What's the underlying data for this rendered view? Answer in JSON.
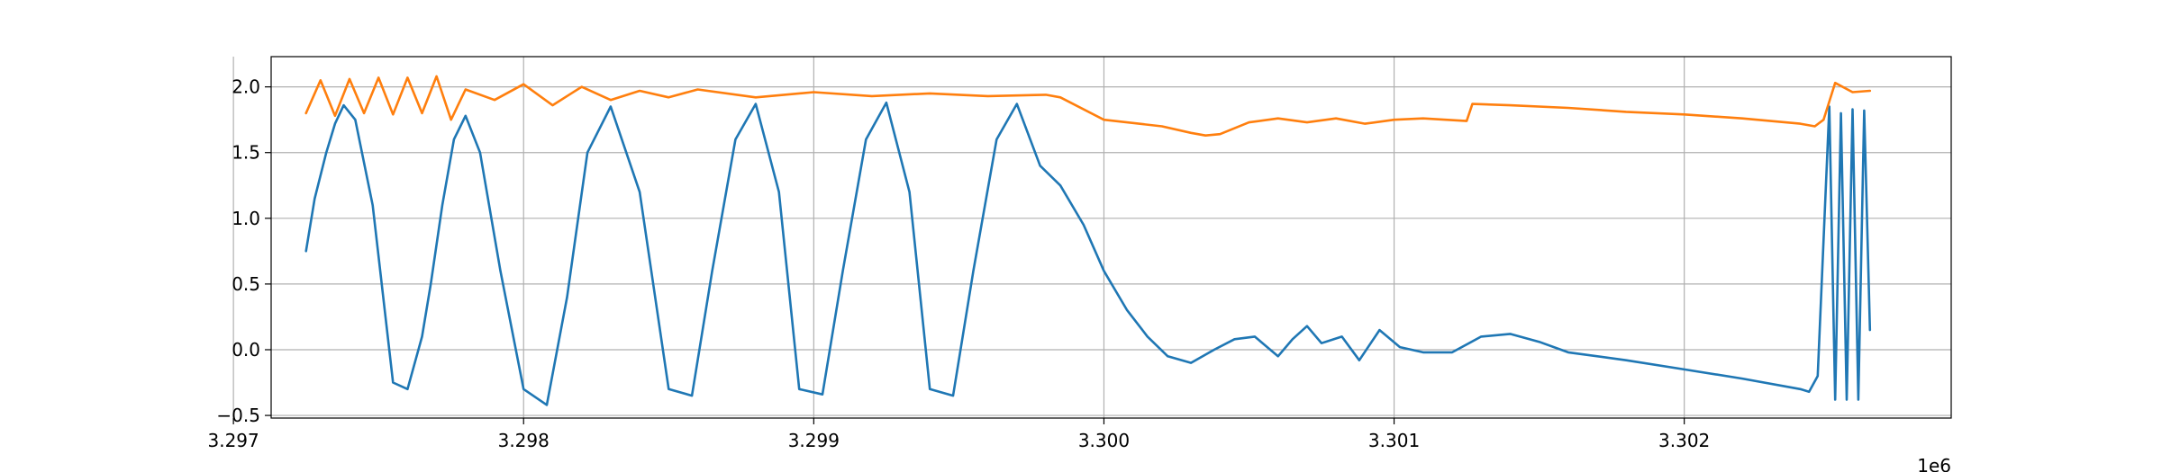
{
  "chart_data": {
    "type": "line",
    "title": "",
    "xlabel": "",
    "ylabel": "",
    "x_offset_label": "1e6",
    "x_scale": 1000000,
    "xlim": [
      3.29713,
      3.30292
    ],
    "ylim": [
      -0.52,
      2.23
    ],
    "grid": true,
    "x_ticks": [
      3.297,
      3.298,
      3.299,
      3.3,
      3.301,
      3.302
    ],
    "x_tick_labels": [
      "3.297",
      "3.298",
      "3.299",
      "3.300",
      "3.301",
      "3.302"
    ],
    "y_ticks": [
      -0.5,
      0.0,
      0.5,
      1.0,
      1.5,
      2.0
    ],
    "y_tick_labels": [
      "−0.5",
      "0.0",
      "0.5",
      "1.0",
      "1.5",
      "2.0"
    ],
    "series": [
      {
        "color": "#1f77b4",
        "x": [
          3.29725,
          3.29728,
          3.29732,
          3.29735,
          3.29738,
          3.29742,
          3.29748,
          3.29755,
          3.2976,
          3.29765,
          3.29768,
          3.29772,
          3.29776,
          3.2978,
          3.29785,
          3.29792,
          3.298,
          3.29808,
          3.29815,
          3.29822,
          3.2983,
          3.2984,
          3.2985,
          3.29858,
          3.29865,
          3.29873,
          3.2988,
          3.29888,
          3.29895,
          3.29903,
          3.2991,
          3.29918,
          3.29925,
          3.29933,
          3.2994,
          3.29948,
          3.29955,
          3.29963,
          3.2997,
          3.29978,
          3.29985,
          3.29993,
          3.3,
          3.30008,
          3.30015,
          3.30022,
          3.3003,
          3.30038,
          3.30045,
          3.30052,
          3.3006,
          3.30065,
          3.3007,
          3.30075,
          3.30082,
          3.30088,
          3.30095,
          3.30102,
          3.3011,
          3.3012,
          3.3013,
          3.3014,
          3.3015,
          3.3016,
          3.3018,
          3.302,
          3.3022,
          3.3024,
          3.30243,
          3.30246,
          3.3025,
          3.30252,
          3.30254,
          3.30256,
          3.30258,
          3.3026,
          3.30262,
          3.30264
        ],
        "y": [
          0.75,
          1.15,
          1.5,
          1.72,
          1.86,
          1.75,
          1.1,
          -0.25,
          -0.3,
          0.1,
          0.5,
          1.1,
          1.6,
          1.78,
          1.5,
          0.6,
          -0.3,
          -0.42,
          0.4,
          1.5,
          1.85,
          1.2,
          -0.3,
          -0.35,
          0.6,
          1.6,
          1.87,
          1.2,
          -0.3,
          -0.34,
          0.6,
          1.6,
          1.88,
          1.2,
          -0.3,
          -0.35,
          0.6,
          1.6,
          1.87,
          1.4,
          1.25,
          0.95,
          0.6,
          0.3,
          0.1,
          -0.05,
          -0.1,
          0.0,
          0.08,
          0.1,
          -0.05,
          0.08,
          0.18,
          0.05,
          0.1,
          -0.08,
          0.15,
          0.02,
          -0.02,
          -0.02,
          0.1,
          0.12,
          0.06,
          -0.02,
          -0.08,
          -0.15,
          -0.22,
          -0.3,
          -0.32,
          -0.2,
          1.85,
          -0.38,
          1.8,
          -0.38,
          1.83,
          -0.38,
          1.82,
          0.15
        ]
      },
      {
        "color": "#ff7f0e",
        "x": [
          3.29725,
          3.2973,
          3.29735,
          3.2974,
          3.29745,
          3.2975,
          3.29755,
          3.2976,
          3.29765,
          3.2977,
          3.29775,
          3.2978,
          3.2979,
          3.298,
          3.2981,
          3.2982,
          3.2983,
          3.2984,
          3.2985,
          3.2986,
          3.2988,
          3.299,
          3.2992,
          3.2994,
          3.2996,
          3.2998,
          3.29985,
          3.3,
          3.3002,
          3.3003,
          3.30035,
          3.3004,
          3.3005,
          3.3006,
          3.3007,
          3.3008,
          3.3009,
          3.301,
          3.3011,
          3.30125,
          3.30127,
          3.3014,
          3.3016,
          3.3018,
          3.302,
          3.3022,
          3.3024,
          3.30245,
          3.30248,
          3.30252,
          3.30258,
          3.30264
        ],
        "y": [
          1.8,
          2.05,
          1.78,
          2.06,
          1.8,
          2.07,
          1.79,
          2.07,
          1.8,
          2.08,
          1.75,
          1.98,
          1.9,
          2.02,
          1.86,
          2.0,
          1.9,
          1.97,
          1.92,
          1.98,
          1.92,
          1.96,
          1.93,
          1.95,
          1.93,
          1.94,
          1.92,
          1.75,
          1.7,
          1.65,
          1.63,
          1.64,
          1.73,
          1.76,
          1.73,
          1.76,
          1.72,
          1.75,
          1.76,
          1.74,
          1.87,
          1.86,
          1.84,
          1.81,
          1.79,
          1.76,
          1.72,
          1.7,
          1.75,
          2.03,
          1.96,
          1.97
        ]
      }
    ]
  }
}
